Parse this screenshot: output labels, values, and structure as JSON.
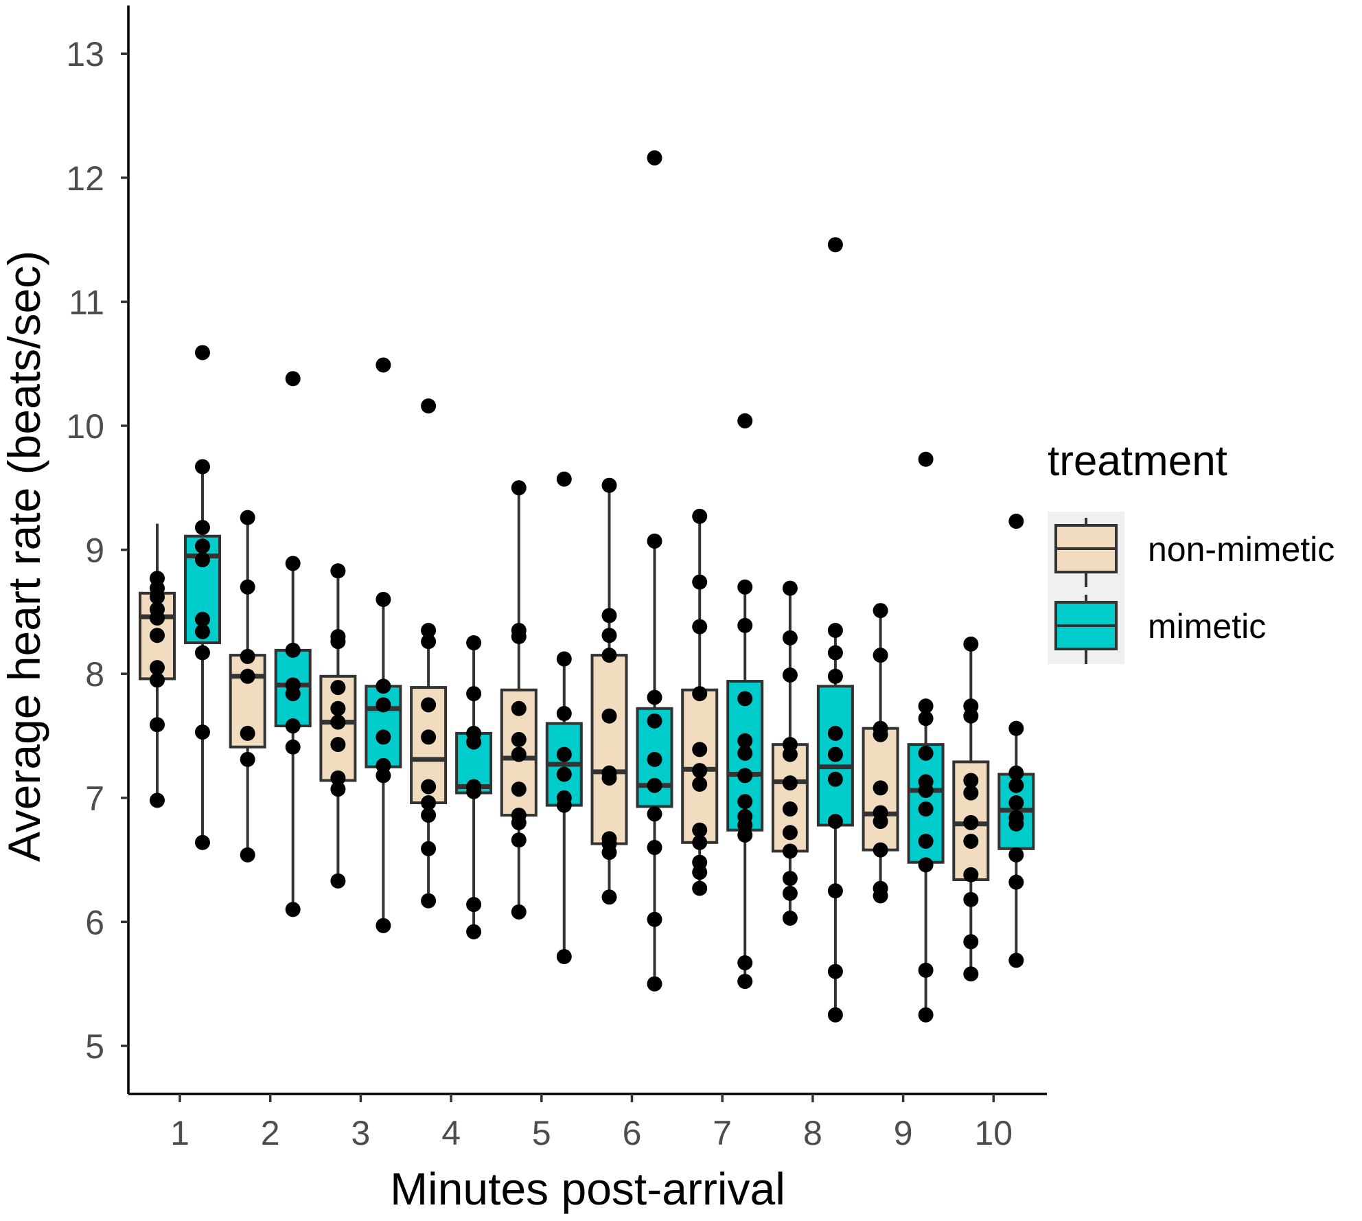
{
  "chart_data": {
    "type": "boxplot",
    "xlabel": "Minutes post-arrival",
    "ylabel": "Average heart rate (beats/sec)",
    "ylim": [
      4.6,
      13.4
    ],
    "yticks": [
      5,
      6,
      7,
      8,
      9,
      10,
      11,
      12,
      13
    ],
    "categories": [
      "1",
      "2",
      "3",
      "4",
      "5",
      "6",
      "7",
      "8",
      "9",
      "10"
    ],
    "legend": {
      "title": "treatment",
      "position": "right"
    },
    "grid": false,
    "series": [
      {
        "name": "non-mimetic",
        "color": "#f2dcc0",
        "boxes": [
          {
            "lw": 6.98,
            "q1": 7.96,
            "median": 8.46,
            "q3": 8.65,
            "uw": 9.21
          },
          {
            "lw": 6.54,
            "q1": 7.41,
            "median": 7.98,
            "q3": 8.15,
            "uw": 9.26
          },
          {
            "lw": 6.33,
            "q1": 7.14,
            "median": 7.61,
            "q3": 7.98,
            "uw": 8.83
          },
          {
            "lw": 6.17,
            "q1": 6.96,
            "median": 7.31,
            "q3": 7.89,
            "uw": 8.35
          },
          {
            "lw": 6.08,
            "q1": 6.86,
            "median": 7.32,
            "q3": 7.87,
            "uw": 9.5
          },
          {
            "lw": 6.2,
            "q1": 6.63,
            "median": 7.21,
            "q3": 8.15,
            "uw": 9.52
          },
          {
            "lw": 6.27,
            "q1": 6.64,
            "median": 7.23,
            "q3": 7.87,
            "uw": 9.27
          },
          {
            "lw": 6.03,
            "q1": 6.57,
            "median": 7.13,
            "q3": 7.43,
            "uw": 8.69
          },
          {
            "lw": 6.21,
            "q1": 6.58,
            "median": 6.87,
            "q3": 7.56,
            "uw": 8.51
          },
          {
            "lw": 5.58,
            "q1": 6.34,
            "median": 6.79,
            "q3": 7.29,
            "uw": 8.24
          }
        ],
        "points": [
          [
            8.77,
            8.69,
            8.62,
            8.52,
            8.45,
            8.31,
            8.05,
            7.95,
            7.59,
            6.98
          ],
          [
            9.26,
            8.7,
            8.14,
            7.98,
            7.52,
            7.31,
            6.54
          ],
          [
            8.83,
            8.3,
            8.26,
            7.89,
            7.72,
            7.61,
            7.43,
            7.16,
            7.07,
            6.33
          ],
          [
            10.16,
            8.35,
            8.26,
            7.75,
            7.49,
            7.09,
            6.96,
            6.86,
            6.59,
            6.17
          ],
          [
            9.5,
            8.35,
            8.3,
            7.72,
            7.47,
            7.35,
            7.07,
            6.86,
            6.8,
            6.66,
            6.08
          ],
          [
            9.52,
            8.47,
            8.31,
            8.15,
            7.66,
            7.2,
            7.16,
            6.67,
            6.63,
            6.56,
            6.2
          ],
          [
            9.27,
            8.74,
            8.38,
            7.84,
            7.39,
            7.22,
            7.11,
            6.74,
            6.64,
            6.48,
            6.4,
            6.27
          ],
          [
            8.69,
            8.29,
            7.99,
            7.43,
            7.35,
            7.12,
            6.91,
            6.72,
            6.57,
            6.35,
            6.23,
            6.03
          ],
          [
            8.51,
            8.15,
            7.56,
            7.51,
            7.08,
            6.88,
            6.81,
            6.58,
            6.27,
            6.21
          ],
          [
            8.24,
            7.74,
            7.66,
            7.14,
            7.04,
            6.8,
            6.65,
            6.38,
            6.18,
            5.84,
            5.58
          ]
        ]
      },
      {
        "name": "mimetic",
        "color": "#00cccc",
        "boxes": [
          {
            "lw": 6.64,
            "q1": 8.25,
            "median": 8.95,
            "q3": 9.11,
            "uw": 9.67
          },
          {
            "lw": 6.1,
            "q1": 7.58,
            "median": 7.91,
            "q3": 8.19,
            "uw": 8.89
          },
          {
            "lw": 5.97,
            "q1": 7.25,
            "median": 7.72,
            "q3": 7.9,
            "uw": 8.6
          },
          {
            "lw": 5.92,
            "q1": 7.04,
            "median": 7.09,
            "q3": 7.52,
            "uw": 8.25
          },
          {
            "lw": 5.72,
            "q1": 6.94,
            "median": 7.27,
            "q3": 7.6,
            "uw": 8.12
          },
          {
            "lw": 5.5,
            "q1": 6.93,
            "median": 7.1,
            "q3": 7.72,
            "uw": 9.07
          },
          {
            "lw": 5.52,
            "q1": 6.74,
            "median": 7.19,
            "q3": 7.94,
            "uw": 8.7
          },
          {
            "lw": 5.25,
            "q1": 6.78,
            "median": 7.25,
            "q3": 7.9,
            "uw": 8.35
          },
          {
            "lw": 5.25,
            "q1": 6.48,
            "median": 7.06,
            "q3": 7.43,
            "uw": 7.74
          },
          {
            "lw": 5.69,
            "q1": 6.59,
            "median": 6.9,
            "q3": 7.19,
            "uw": 7.56
          }
        ],
        "points": [
          [
            10.59,
            9.67,
            9.18,
            9.03,
            8.92,
            8.44,
            8.34,
            8.17,
            7.53,
            6.64
          ],
          [
            10.38,
            8.89,
            8.19,
            7.91,
            7.84,
            7.58,
            7.41,
            6.1
          ],
          [
            10.49,
            8.6,
            7.9,
            7.75,
            7.49,
            7.26,
            7.18,
            5.97
          ],
          [
            8.25,
            7.84,
            7.52,
            7.45,
            7.09,
            7.05,
            6.14,
            5.92
          ],
          [
            9.57,
            8.12,
            7.68,
            7.35,
            7.19,
            7.0,
            6.94,
            5.72
          ],
          [
            12.16,
            9.07,
            7.81,
            7.62,
            7.31,
            7.1,
            6.87,
            6.6,
            6.02,
            5.5
          ],
          [
            10.04,
            8.7,
            8.39,
            7.8,
            7.46,
            7.36,
            7.18,
            6.97,
            6.85,
            6.78,
            6.7,
            5.67,
            5.52
          ],
          [
            11.46,
            8.35,
            8.17,
            7.98,
            7.52,
            7.35,
            7.15,
            6.81,
            6.25,
            5.6,
            5.25
          ],
          [
            9.73,
            7.74,
            7.64,
            7.36,
            7.13,
            7.06,
            6.91,
            6.65,
            6.46,
            5.61,
            5.25
          ],
          [
            9.23,
            7.56,
            7.2,
            7.1,
            6.96,
            6.84,
            6.79,
            6.54,
            6.32,
            5.69
          ]
        ]
      }
    ]
  }
}
